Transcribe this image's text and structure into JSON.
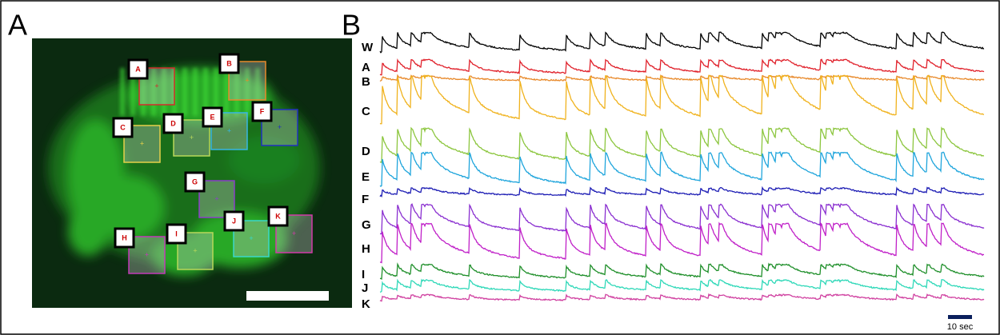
{
  "panels": {
    "a": "A",
    "b": "B"
  },
  "rois": [
    {
      "label": "A",
      "color": "#d42a2a"
    },
    {
      "label": "B",
      "color": "#e8892a"
    },
    {
      "label": "C",
      "color": "#e6d14a"
    },
    {
      "label": "D",
      "color": "#b8d85a"
    },
    {
      "label": "E",
      "color": "#37b6e3"
    },
    {
      "label": "F",
      "color": "#2030c0"
    },
    {
      "label": "G",
      "color": "#8a3fc8"
    },
    {
      "label": "H",
      "color": "#c23ab8"
    },
    {
      "label": "I",
      "color": "#b8d85a"
    },
    {
      "label": "J",
      "color": "#3ad8c8"
    },
    {
      "label": "K",
      "color": "#d23aa8"
    }
  ],
  "traces": [
    {
      "label": "W",
      "color": "#000000"
    },
    {
      "label": "A",
      "color": "#e0202a"
    },
    {
      "label": "B",
      "color": "#e8892a"
    },
    {
      "label": "C",
      "color": "#f0b21c"
    },
    {
      "label": "D",
      "color": "#8cc63e"
    },
    {
      "label": "E",
      "color": "#1fa5dc"
    },
    {
      "label": "F",
      "color": "#1c1cb4"
    },
    {
      "label": "G",
      "color": "#8a2fd0"
    },
    {
      "label": "H",
      "color": "#c020c8"
    },
    {
      "label": "I",
      "color": "#1f8f2a"
    },
    {
      "label": "J",
      "color": "#2ed8b8"
    },
    {
      "label": "K",
      "color": "#d040a0"
    }
  ],
  "time_scale_label": "10 sec"
}
